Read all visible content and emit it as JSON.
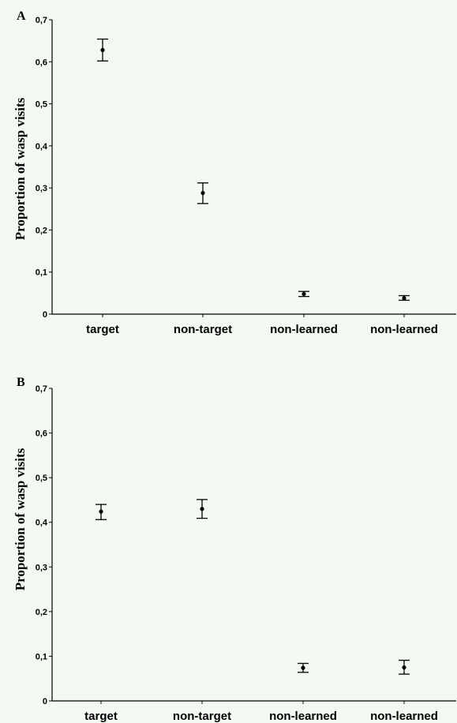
{
  "chart_data": [
    {
      "type": "scatter",
      "panel_label": "A",
      "ylabel": "Proportion of wasp visits",
      "categories": [
        "target",
        "non-target",
        "non-learned",
        "non-learned"
      ],
      "values": [
        0.628,
        0.288,
        0.048,
        0.038
      ],
      "error_low": [
        0.602,
        0.263,
        0.042,
        0.033
      ],
      "error_high": [
        0.654,
        0.312,
        0.054,
        0.044
      ],
      "ylim": [
        0,
        0.7
      ],
      "yticks": [
        0,
        0.1,
        0.2,
        0.3,
        0.4,
        0.5,
        0.6,
        0.7
      ],
      "ytick_labels": [
        "0",
        "0,1",
        "0,2",
        "0,3",
        "0,4",
        "0,5",
        "0,6",
        "0,7"
      ],
      "grid": false
    },
    {
      "type": "scatter",
      "panel_label": "B",
      "ylabel": "Proportion of wasp visits",
      "categories": [
        "target",
        "non-target",
        "non-learned",
        "non-learned"
      ],
      "values": [
        0.424,
        0.43,
        0.074,
        0.075
      ],
      "error_low": [
        0.406,
        0.409,
        0.064,
        0.06
      ],
      "error_high": [
        0.44,
        0.451,
        0.084,
        0.091
      ],
      "ylim": [
        0,
        0.7
      ],
      "yticks": [
        0,
        0.1,
        0.2,
        0.3,
        0.4,
        0.5,
        0.6,
        0.7
      ],
      "ytick_labels": [
        "0",
        "0,1",
        "0,2",
        "0,3",
        "0,4",
        "0,5",
        "0,6",
        "0,7"
      ],
      "grid": false
    }
  ]
}
